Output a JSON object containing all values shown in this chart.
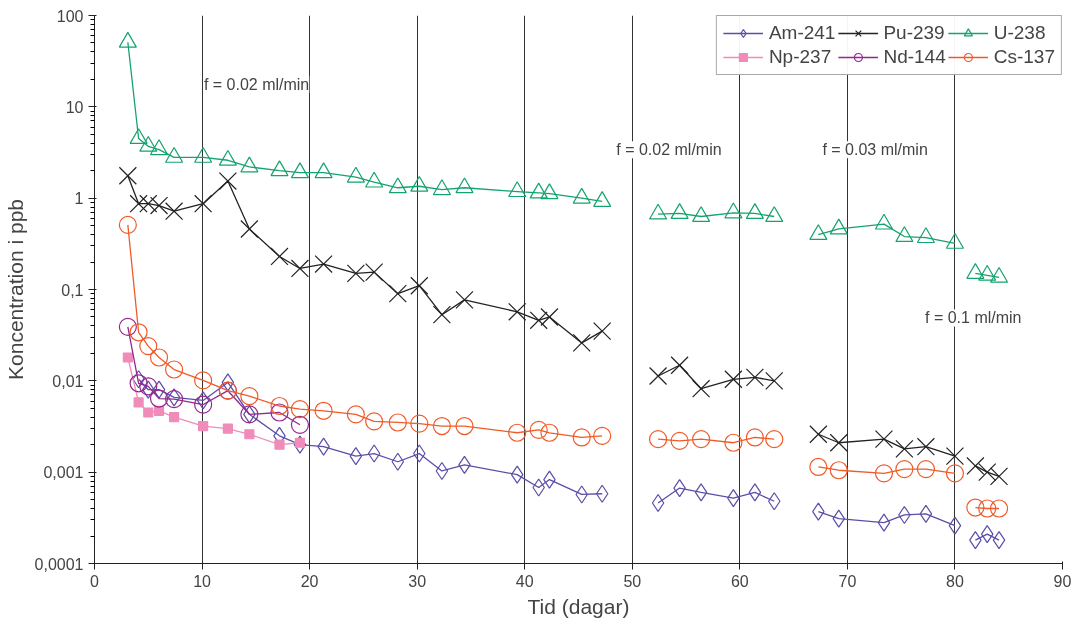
{
  "chart_data": {
    "type": "line",
    "xlabel": "Tid (dagar)",
    "ylabel": "Koncentration i ppb",
    "log": "y",
    "grid": "x",
    "legend": "top right",
    "xlim": [
      0,
      90
    ],
    "xticks": [
      0,
      10,
      20,
      30,
      40,
      50,
      60,
      70,
      80,
      90
    ],
    "ylim": [
      0.0001,
      100
    ],
    "yticks": [
      {
        "value": 0.0001,
        "label": "0,0001"
      },
      {
        "value": 0.001,
        "label": "0,001"
      },
      {
        "value": 0.01,
        "label": "0,01"
      },
      {
        "value": 0.1,
        "label": "0,1"
      },
      1,
      10,
      100
    ],
    "x": [
      3.1,
      4.1,
      5.0,
      6.0,
      7.4,
      10.1,
      12.4,
      14.4,
      17.2,
      19.1,
      21.3,
      24.3,
      26.0,
      28.2,
      30.2,
      32.3,
      34.4,
      39.3,
      41.3,
      42.3,
      45.3,
      47.2,
      50,
      52.4,
      54.4,
      56.4,
      59.4,
      61.4,
      63.2,
      65,
      67.3,
      69.2,
      73.4,
      75.3,
      77.3,
      80.0,
      81,
      81.9,
      83.0,
      84.1
    ],
    "series": [
      {
        "name": "Am-241",
        "color": "#5a4fa8",
        "marker": "diamond",
        "values": [
          null,
          0.0104,
          0.008,
          0.008,
          0.0066,
          0.0061,
          0.0096,
          0.0043,
          0.0025,
          0.002,
          0.0019,
          0.0015,
          0.0016,
          0.0013,
          0.0016,
          0.00103,
          0.0012,
          0.00094,
          0.00068,
          0.00083,
          0.00057,
          0.00058,
          null,
          0.00046,
          0.00067,
          0.0006,
          0.00052,
          0.0006,
          0.00048,
          null,
          0.00037,
          0.00031,
          0.00028,
          0.00034,
          0.00035,
          0.00026,
          null,
          0.00018,
          0.00021,
          0.00018
        ]
      },
      {
        "name": "Pu-239",
        "color": "#222222",
        "marker": "cross",
        "values": [
          1.76,
          0.87,
          0.87,
          0.83,
          0.72,
          0.87,
          1.54,
          0.46,
          0.23,
          0.17,
          0.19,
          0.15,
          0.155,
          0.09,
          0.11,
          0.053,
          0.077,
          0.057,
          0.046,
          0.05,
          0.026,
          0.035,
          null,
          0.0113,
          0.0148,
          0.0082,
          0.0104,
          0.0109,
          0.01,
          null,
          0.0026,
          0.0021,
          0.0023,
          0.0018,
          0.0019,
          0.0015,
          null,
          0.00117,
          0.001,
          0.0009
        ]
      },
      {
        "name": "U-238",
        "color": "#14a36e",
        "marker": "triangle",
        "values": [
          51,
          4.5,
          3.7,
          3.4,
          2.8,
          2.8,
          2.6,
          2.2,
          2.0,
          1.9,
          1.9,
          1.7,
          1.5,
          1.3,
          1.35,
          1.24,
          1.3,
          1.18,
          1.14,
          1.12,
          1.0,
          0.92,
          null,
          0.67,
          0.68,
          0.63,
          0.69,
          0.68,
          0.63,
          null,
          0.4,
          0.46,
          0.52,
          0.38,
          0.37,
          0.32,
          null,
          0.15,
          0.143,
          0.136
        ]
      },
      {
        "name": "Np-237",
        "color": "#f08cba",
        "marker": "square",
        "x": [
          3.1,
          4.1,
          5.0,
          6.0,
          7.4,
          10.1,
          12.4,
          14.4,
          17.2,
          19.1
        ],
        "values": [
          0.018,
          0.0058,
          0.0045,
          0.0047,
          0.004,
          0.0032,
          0.003,
          0.0026,
          0.002,
          0.0021
        ]
      },
      {
        "name": "Nd-144",
        "color": "#93278f",
        "marker": "circle",
        "x": [
          3.1,
          4.1,
          5.0,
          6.0,
          7.4,
          10.1,
          12.4,
          14.4,
          17.2,
          19.1
        ],
        "values": [
          0.039,
          0.0094,
          0.0087,
          0.0064,
          0.0063,
          0.0055,
          0.0078,
          0.0043,
          0.0045,
          0.0033
        ]
      },
      {
        "name": "Cs-137",
        "color": "#f05a28",
        "marker": "circle",
        "values": [
          0.51,
          0.034,
          0.024,
          0.018,
          0.0133,
          0.0101,
          0.0078,
          0.0068,
          0.0053,
          0.0049,
          0.0047,
          0.0043,
          0.0036,
          0.0035,
          0.0034,
          0.0032,
          0.0032,
          0.0027,
          0.0029,
          0.0027,
          0.0024,
          0.0025,
          null,
          0.0023,
          0.0022,
          0.0023,
          0.0021,
          0.0024,
          0.0023,
          null,
          0.00114,
          0.00105,
          0.00097,
          0.00108,
          0.00108,
          0.00097,
          null,
          0.00041,
          0.0004,
          0.0004
        ]
      }
    ],
    "annotations": [
      "f = 0.02 ml/min",
      "f = 0.02 ml/min",
      "f = 0.03 ml/min",
      "f = 0.1 ml/min"
    ]
  }
}
